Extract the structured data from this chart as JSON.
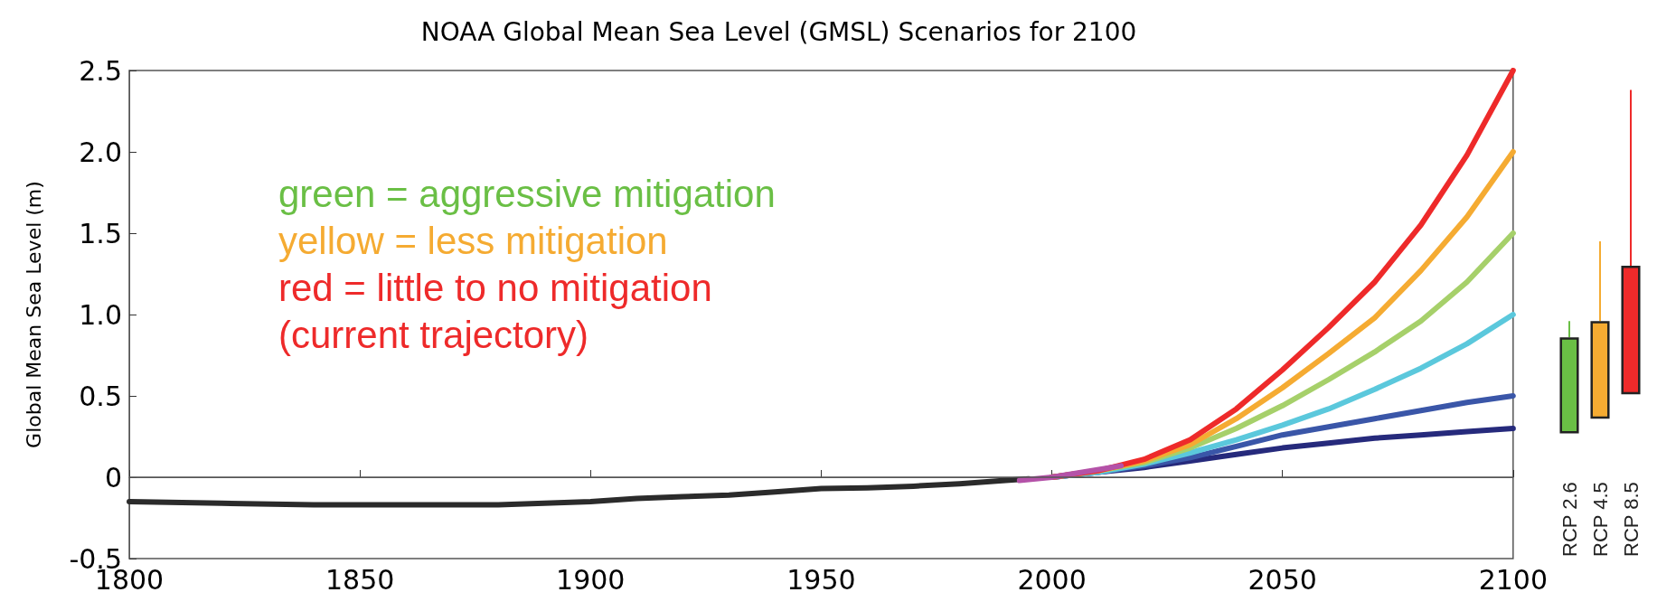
{
  "chart_data": [
    {
      "type": "line",
      "title": "NOAA Global Mean Sea Level (GMSL) Scenarios for 2100",
      "ylabel": "Global Mean Sea Level (m)",
      "annotations": [
        "green = aggressive mitigation",
        "yellow = less mitigation",
        "red = little to no mitigation",
        "(current trajectory)"
      ],
      "xlim": [
        1800,
        2100
      ],
      "xticks": [
        1800,
        1850,
        1900,
        1950,
        2000,
        2050,
        2100
      ],
      "ylim": [
        -0.5,
        2.5
      ],
      "yticks": [
        -0.5,
        0,
        0.5,
        {
          "value": 1,
          "label": "1.0"
        },
        1.5,
        {
          "value": 2,
          "label": "2.0"
        },
        2.5
      ],
      "grid": false,
      "marker": "none",
      "line_style": "solid",
      "ref_lines": [
        {
          "axis": "y",
          "value": 0,
          "label": null,
          "color": "#555555"
        }
      ],
      "series": [
        {
          "color": "#2b2b2b",
          "x": [
            1800,
            1820,
            1840,
            1860,
            1880,
            1900,
            1910,
            1920,
            1930,
            1940,
            1950,
            1960,
            1970,
            1980,
            1990,
            1995
          ],
          "values": [
            -0.15,
            -0.16,
            -0.17,
            -0.17,
            -0.17,
            -0.15,
            -0.13,
            -0.12,
            -0.11,
            -0.09,
            -0.07,
            -0.065,
            -0.055,
            -0.04,
            -0.02,
            -0.01
          ]
        },
        {
          "color": "#262a7c",
          "x": [
            2000,
            2010,
            2020,
            2030,
            2040,
            2050,
            2060,
            2070,
            2080,
            2090,
            2100
          ],
          "values": [
            0,
            0.03,
            0.06,
            0.1,
            0.14,
            0.18,
            0.21,
            0.24,
            0.26,
            0.28,
            0.3
          ]
        },
        {
          "color": "#3a56a8",
          "x": [
            2000,
            2010,
            2020,
            2030,
            2040,
            2050,
            2060,
            2070,
            2080,
            2090,
            2100
          ],
          "values": [
            0,
            0.03,
            0.07,
            0.12,
            0.19,
            0.26,
            0.31,
            0.36,
            0.41,
            0.46,
            0.5
          ]
        },
        {
          "color": "#5bc8dc",
          "x": [
            2000,
            2010,
            2020,
            2030,
            2040,
            2050,
            2060,
            2070,
            2080,
            2090,
            2100
          ],
          "values": [
            0,
            0.03,
            0.08,
            0.15,
            0.23,
            0.32,
            0.42,
            0.54,
            0.67,
            0.82,
            1.0
          ]
        },
        {
          "color": "#a6d06a",
          "x": [
            2000,
            2010,
            2020,
            2030,
            2040,
            2050,
            2060,
            2070,
            2080,
            2090,
            2100
          ],
          "values": [
            0,
            0.04,
            0.09,
            0.18,
            0.3,
            0.44,
            0.6,
            0.77,
            0.96,
            1.2,
            1.5
          ]
        },
        {
          "color": "#f5ab32",
          "x": [
            2000,
            2010,
            2020,
            2030,
            2040,
            2050,
            2060,
            2070,
            2080,
            2090,
            2100
          ],
          "values": [
            0,
            0.04,
            0.1,
            0.2,
            0.36,
            0.55,
            0.76,
            0.98,
            1.27,
            1.6,
            2.0
          ]
        },
        {
          "color": "#ee2a2a",
          "x": [
            2000,
            2010,
            2020,
            2030,
            2040,
            2050,
            2060,
            2070,
            2080,
            2090,
            2100
          ],
          "values": [
            0,
            0.04,
            0.11,
            0.23,
            0.42,
            0.66,
            0.92,
            1.2,
            1.55,
            1.98,
            2.5
          ]
        },
        {
          "color": "#b452a8",
          "x": [
            1993,
            2000,
            2015
          ],
          "values": [
            -0.02,
            0,
            0.07
          ]
        }
      ]
    },
    {
      "type": "bar",
      "categories": [
        "RCP 2.6",
        "RCP 4.5",
        "RCP 8.5"
      ],
      "base": [
        0.27,
        0.36,
        0.51
      ],
      "values": [
        0.59,
        0.6,
        0.79
      ],
      "errors": [
        [
          0.86,
          0.96
        ],
        [
          0.96,
          1.45
        ],
        [
          1.3,
          2.38
        ]
      ],
      "colors": [
        "#6abf45",
        "#f5ab32",
        "#ee2a2a"
      ],
      "ylim": [
        -0.5,
        2.5
      ],
      "tick_labels": "x"
    }
  ]
}
